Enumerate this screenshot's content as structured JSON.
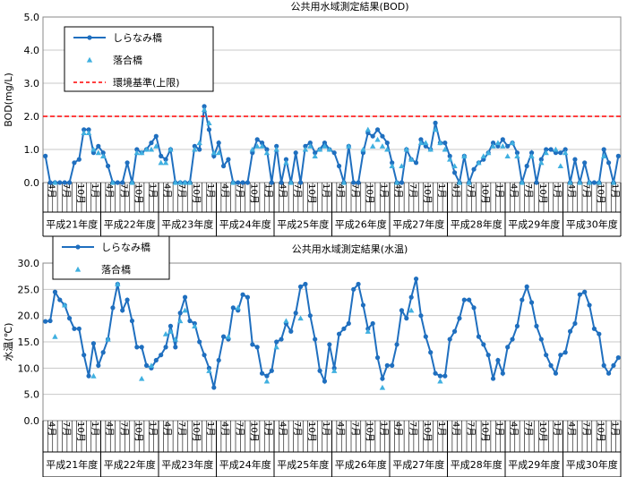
{
  "chart_data": [
    {
      "type": "line",
      "title": "公共用水域測定結果(BOD)",
      "ylabel": "BOD(mg/L)",
      "ylim": [
        0,
        5
      ],
      "yticks": [
        "0.0",
        "1.0",
        "2.0",
        "3.0",
        "4.0",
        "5.0"
      ],
      "month_ticks": [
        "4月",
        "7月",
        "10月",
        "1月"
      ],
      "year_labels": [
        "平成21年度",
        "平成22年度",
        "平成23年度",
        "平成24年度",
        "平成25年度",
        "平成26年度",
        "平成27年度",
        "平成28年度",
        "平成29年度",
        "平成30年度"
      ],
      "grid": true,
      "legend_position": "top-left",
      "series": [
        {
          "name": "しらなみ橋",
          "style": "line-circle",
          "color": "#1f6fbf",
          "values": [
            0.8,
            0,
            0,
            0,
            0,
            0,
            0.6,
            0.7,
            1.6,
            1.6,
            0.9,
            1.1,
            0.9,
            0.5,
            0,
            0,
            0,
            0.6,
            0,
            1.0,
            0.9,
            1.0,
            1.2,
            1.4,
            0.8,
            0.7,
            1.0,
            0,
            0,
            0,
            0,
            1.1,
            1.0,
            2.3,
            1.6,
            0.8,
            1.2,
            0.5,
            0.7,
            0,
            0,
            0,
            0,
            0.9,
            1.3,
            1.2,
            1.0,
            0,
            1.1,
            0,
            0.7,
            0,
            0.9,
            0,
            1.1,
            1.2,
            0.9,
            1.0,
            1.2,
            1.0,
            0.9,
            0.5,
            0,
            1.1,
            0,
            0,
            0.9,
            1.5,
            1.4,
            1.6,
            1.4,
            1.2,
            0.6,
            0,
            0,
            1.0,
            0.7,
            0.6,
            1.3,
            1.1,
            1.0,
            1.8,
            1.2,
            1.2,
            0.8,
            0.3,
            0,
            0.8,
            0,
            0.4,
            0.6,
            0.7,
            0.9,
            1.2,
            1.1,
            1.3,
            1.1,
            1.2,
            0.9,
            0,
            0.5,
            0.9,
            0,
            0.7,
            1.0,
            1.0,
            0.9,
            0.9,
            1.0,
            0,
            0.7,
            0,
            0.6,
            0,
            0,
            0,
            1.0,
            0.6,
            0,
            0.8
          ]
        },
        {
          "name": "落合橋",
          "style": "triangle",
          "color": "#40b0e0",
          "values": [
            null,
            null,
            0,
            null,
            null,
            null,
            null,
            null,
            1.5,
            1.5,
            1.0,
            0.9,
            0.8,
            null,
            0,
            null,
            null,
            null,
            0,
            0.9,
            0.9,
            1.0,
            1.0,
            1.1,
            0.6,
            0.6,
            1.0,
            0,
            0,
            0,
            0,
            1.0,
            1.2,
            2.2,
            1.8,
            0.9,
            0.9,
            null,
            null,
            0,
            null,
            null,
            null,
            1.0,
            1.1,
            1.1,
            0.9,
            null,
            1.0,
            null,
            0.6,
            0,
            null,
            null,
            1.0,
            1.1,
            0.8,
            1.0,
            1.1,
            1.0,
            null,
            null,
            0,
            1.1,
            null,
            null,
            1.0,
            1.6,
            1.1,
            1.3,
            1.1,
            1.0,
            0.5,
            0,
            0.5,
            1.0,
            0.7,
            null,
            1.2,
            1.2,
            1.0,
            1.6,
            1.2,
            1.0,
            0.7,
            0.5,
            0,
            0.8,
            0,
            null,
            0.6,
            0.8,
            0.9,
            1.1,
            1.2,
            1.1,
            0.8,
            1.2,
            0.8,
            0,
            null,
            0.8,
            null,
            0.6,
            0.9,
            null,
            1.0,
            0.5,
            0.9,
            0,
            null,
            0,
            null,
            0,
            null,
            0,
            0.8,
            null,
            0,
            null
          ]
        },
        {
          "name": "環境基準(上限)",
          "style": "dashed",
          "color": "#ff0000",
          "values": [
            2.0
          ]
        }
      ]
    },
    {
      "type": "line",
      "title": "公共用水域測定結果(水温)",
      "ylabel": "水温(℃)",
      "ylim": [
        0,
        30
      ],
      "yticks": [
        "0.0",
        "5.0",
        "10.0",
        "15.0",
        "20.0",
        "25.0",
        "30.0"
      ],
      "month_ticks": [
        "4月",
        "7月",
        "10月",
        "1月"
      ],
      "year_labels": [
        "平成21年度",
        "平成22年度",
        "平成23年度",
        "平成24年度",
        "平成25年度",
        "平成26年度",
        "平成27年度",
        "平成28年度",
        "平成29年度",
        "平成30年度"
      ],
      "grid": true,
      "legend_position": "top-left",
      "series": [
        {
          "name": "しらなみ橋",
          "style": "line-circle",
          "color": "#1f6fbf",
          "values": [
            18.9,
            19.0,
            24.5,
            23.0,
            22.0,
            19.5,
            17.5,
            17.5,
            12.5,
            8.5,
            14.7,
            10.5,
            13.0,
            15.5,
            21.5,
            26.0,
            21.0,
            23.0,
            19.0,
            14.0,
            14.0,
            10.5,
            10.0,
            11.5,
            12.5,
            14.0,
            18.0,
            14.0,
            20.5,
            23.5,
            19.0,
            18.5,
            15.0,
            12.5,
            10.0,
            6.3,
            11.5,
            16.0,
            15.5,
            21.5,
            21.0,
            24.0,
            23.5,
            14.5,
            14.0,
            9.0,
            8.5,
            9.5,
            15.0,
            15.5,
            18.5,
            17.0,
            20.5,
            25.5,
            26.0,
            20.0,
            15.5,
            9.5,
            7.5,
            14.5,
            10.0,
            16.5,
            17.5,
            18.5,
            25.0,
            26.0,
            22.0,
            17.5,
            18.5,
            12.0,
            8.0,
            10.5,
            10.5,
            14.5,
            21.0,
            19.5,
            23.5,
            27.0,
            20.0,
            16.0,
            13.0,
            9.0,
            8.5,
            8.5,
            15.5,
            17.0,
            19.5,
            23.0,
            23.0,
            21.5,
            16.0,
            14.5,
            12.5,
            8.0,
            11.5,
            9.0,
            14.0,
            15.5,
            18.0,
            23.0,
            25.5,
            22.5,
            18.0,
            15.5,
            12.5,
            10.5,
            9.0,
            12.5,
            13.0,
            17.0,
            18.5,
            24.0,
            24.5,
            22.0,
            17.5,
            16.5,
            10.5,
            9.0,
            10.5,
            12.0
          ]
        },
        {
          "name": "落合橋",
          "style": "triangle",
          "color": "#40b0e0",
          "values": [
            null,
            null,
            16.0,
            null,
            22.0,
            null,
            null,
            null,
            null,
            null,
            8.5,
            null,
            null,
            15.5,
            null,
            26.0,
            null,
            null,
            null,
            null,
            8.0,
            null,
            10.5,
            null,
            null,
            16.5,
            17.0,
            15.5,
            19.0,
            21.0,
            null,
            18.0,
            null,
            null,
            9.5,
            null,
            null,
            null,
            16.0,
            null,
            21.5,
            null,
            null,
            null,
            null,
            null,
            7.5,
            null,
            14.0,
            null,
            19.0,
            null,
            null,
            19.5,
            null,
            null,
            null,
            null,
            null,
            null,
            9.5,
            null,
            null,
            null,
            null,
            null,
            null,
            17.0,
            null,
            null,
            6.3,
            null,
            null,
            null,
            null,
            null,
            21.0,
            null,
            null,
            null,
            null,
            null,
            7.5,
            null,
            null,
            null,
            null,
            null,
            null,
            null,
            null,
            null,
            null,
            null,
            null,
            null,
            null,
            null,
            null,
            null,
            null,
            null,
            null,
            null,
            null,
            null,
            null,
            null,
            null,
            null,
            null,
            null,
            null,
            null,
            null,
            null,
            null,
            null,
            null,
            null
          ]
        }
      ]
    }
  ]
}
